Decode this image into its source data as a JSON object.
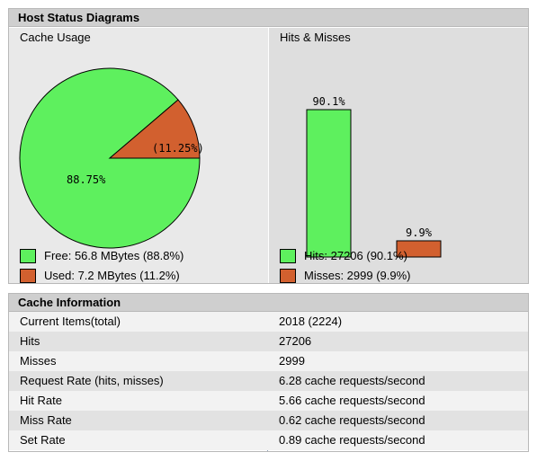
{
  "diagrams": {
    "header": "Host Status Diagrams",
    "cache_usage": {
      "title": "Cache Usage",
      "free_label": "Free: 56.8 MBytes (88.8%)",
      "used_label": "Used: 7.2 MBytes (11.2%)",
      "free_pct_text": "88.75%",
      "used_pct_text": "(11.25%)"
    },
    "hits_misses": {
      "title": "Hits & Misses",
      "hits_label": "Hits: 27206 (90.1%)",
      "misses_label": "Misses: 2999 (9.9%)",
      "hits_pct_text": "90.1%",
      "misses_pct_text": "9.9%"
    },
    "colors": {
      "green": "#5ef05e",
      "orange": "#d2602f"
    }
  },
  "chart_data": [
    {
      "type": "pie",
      "title": "Cache Usage",
      "categories": [
        "Free",
        "Used"
      ],
      "values": [
        88.75,
        11.25
      ]
    },
    {
      "type": "bar",
      "title": "Hits & Misses",
      "categories": [
        "Hits",
        "Misses"
      ],
      "values": [
        90.1,
        9.9
      ]
    }
  ],
  "info": {
    "header": "Cache Information",
    "rows": [
      {
        "key": "Current Items(total)",
        "value": "2018 (2224)"
      },
      {
        "key": "Hits",
        "value": "27206"
      },
      {
        "key": "Misses",
        "value": "2999"
      },
      {
        "key": "Request Rate (hits, misses)",
        "value": "6.28 cache requests/second"
      },
      {
        "key": "Hit Rate",
        "value": "5.66 cache requests/second"
      },
      {
        "key": "Miss Rate",
        "value": "0.62 cache requests/second"
      },
      {
        "key": "Set Rate",
        "value": "0.89 cache requests/second"
      }
    ]
  }
}
